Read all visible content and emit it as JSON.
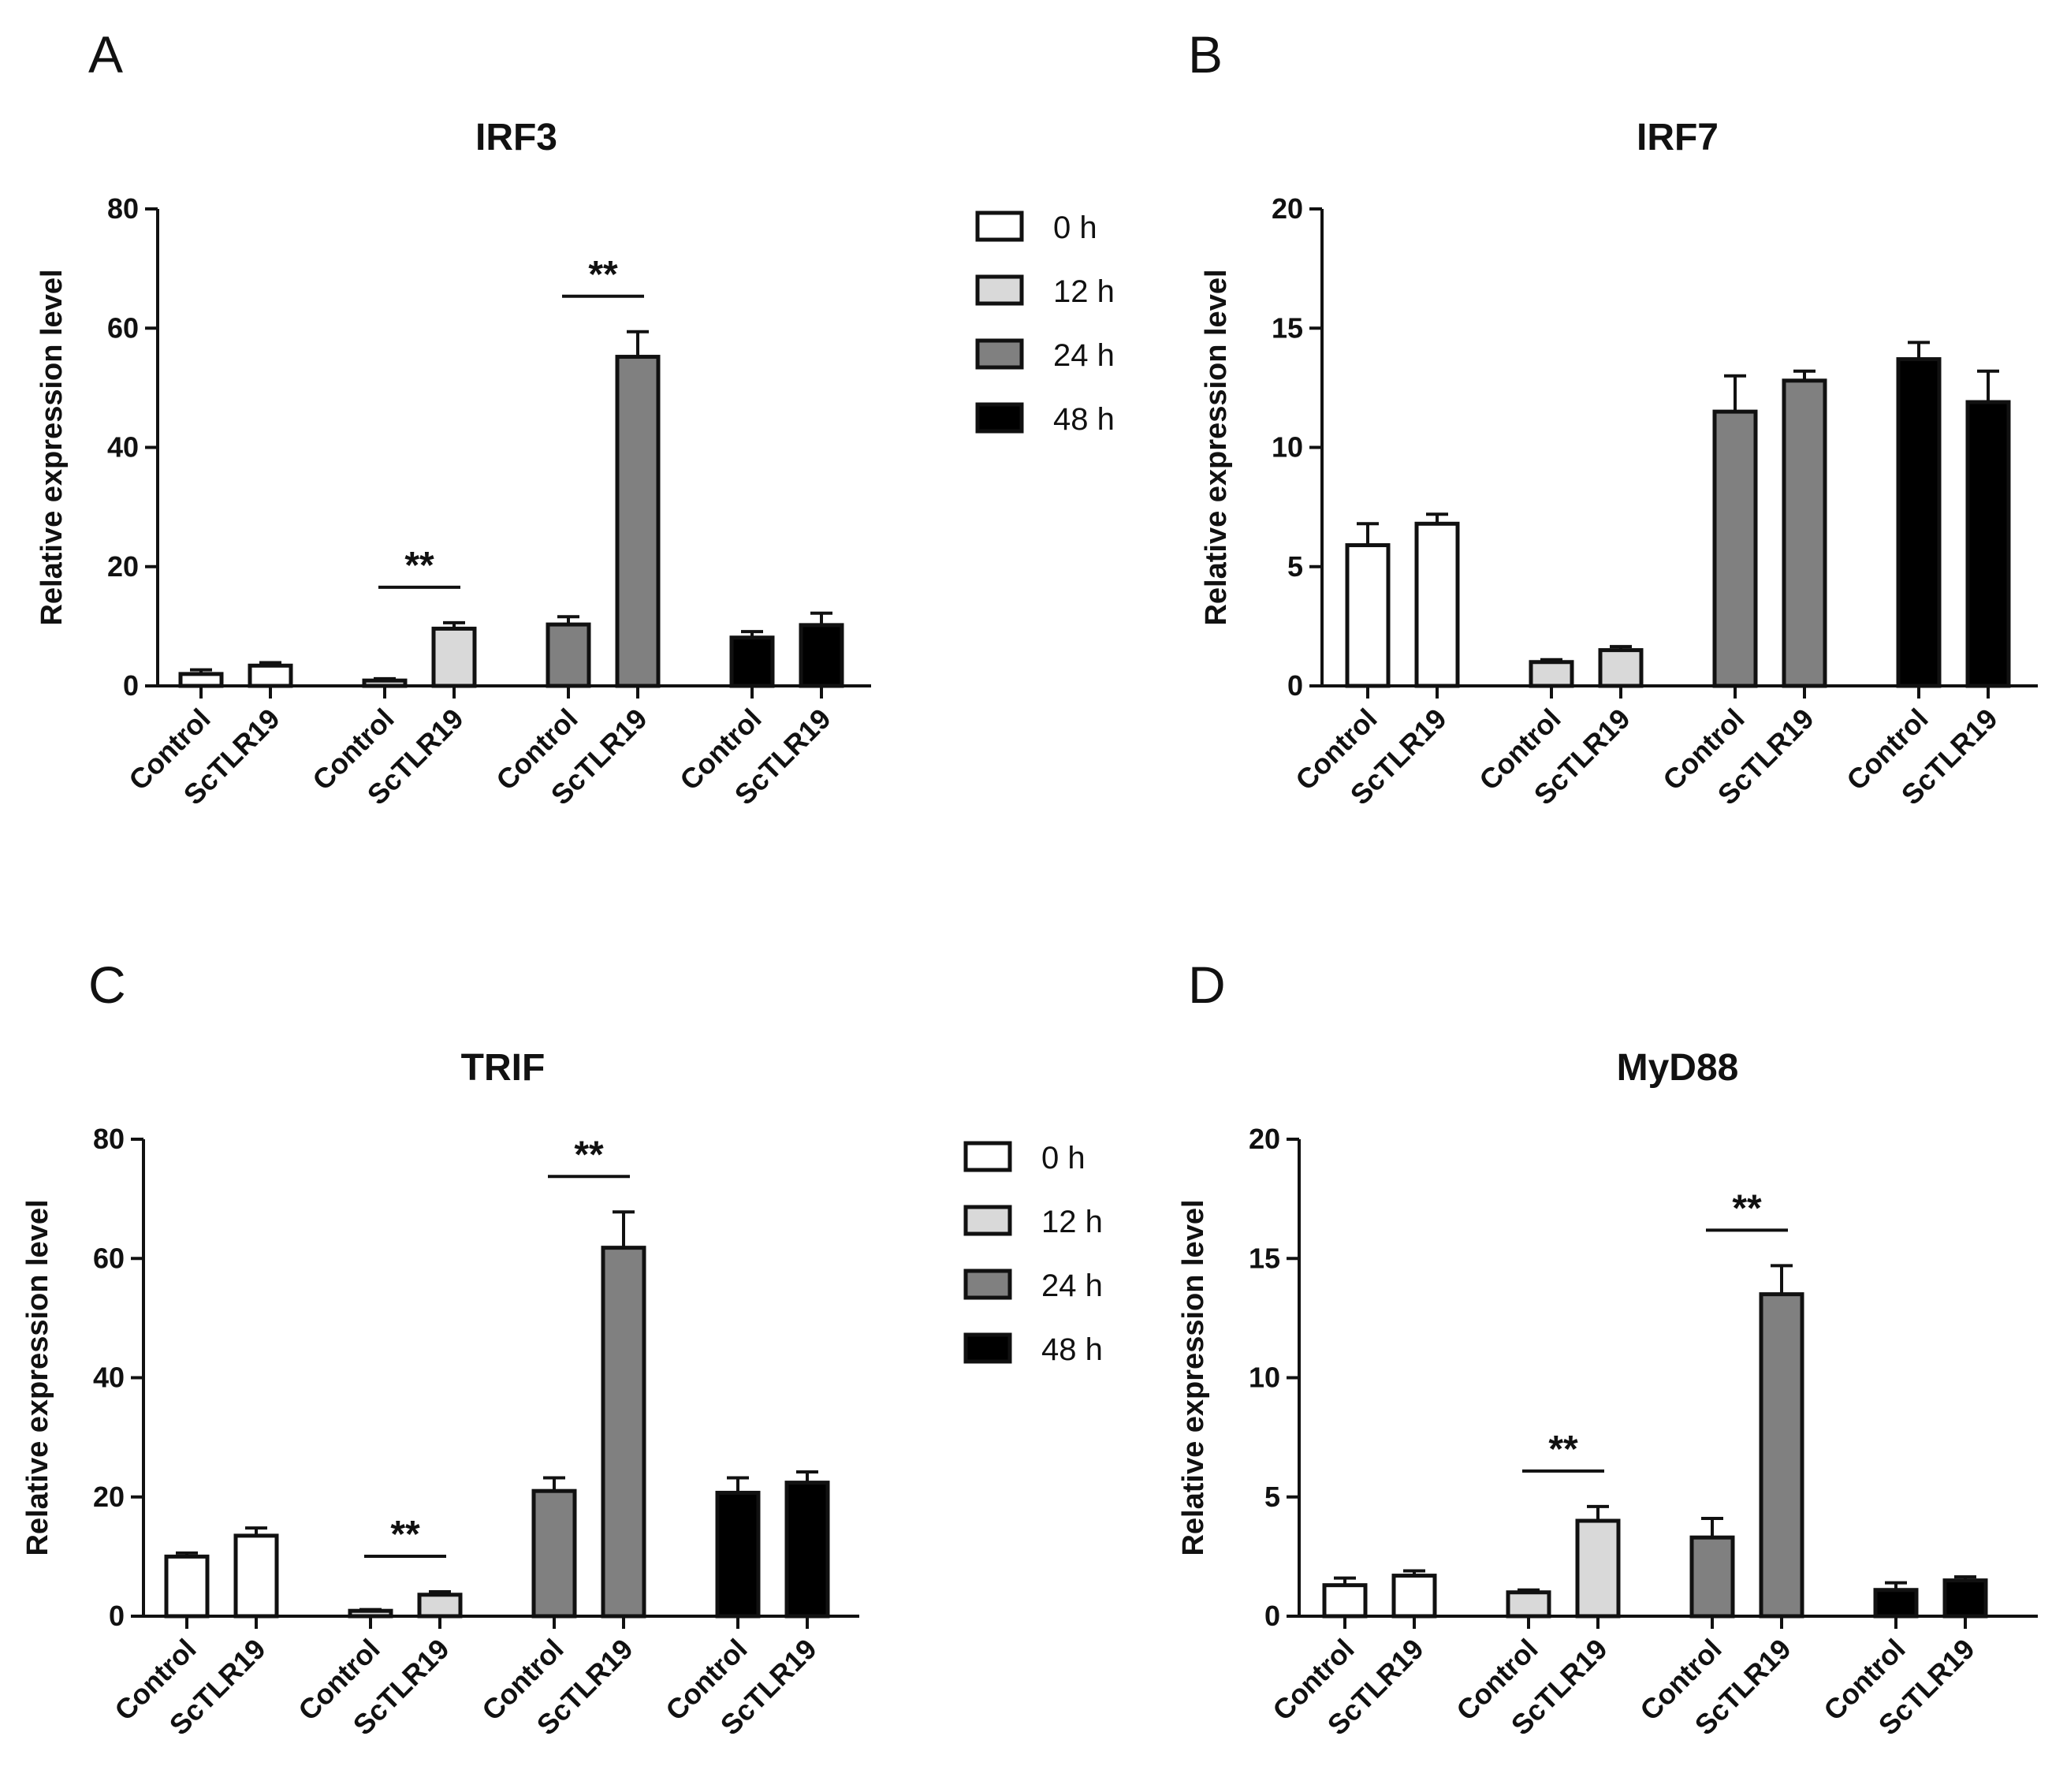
{
  "figure": {
    "charts": [
      "A",
      "B",
      "C",
      "D"
    ]
  },
  "legend": {
    "entries": [
      {
        "label": "0 h",
        "color": "#ffffff"
      },
      {
        "label": "12 h",
        "color": "#d9d9d9"
      },
      {
        "label": "24 h",
        "color": "#808080"
      },
      {
        "label": "48 h",
        "color": "#000000"
      }
    ]
  },
  "chart_data": [
    {
      "type": "bar",
      "panel": "A",
      "title": "IRF3",
      "ylabel": "Relative  expression level",
      "xlabel": "",
      "ylim": [
        0,
        80
      ],
      "yticks": [
        0,
        20,
        40,
        60,
        80
      ],
      "ytick_labels": [
        "0",
        "20",
        "40",
        "60",
        "80"
      ],
      "groups": [
        "0 h",
        "12 h",
        "24 h",
        "48 h"
      ],
      "categories": [
        "Control",
        "ScTLR19"
      ],
      "series": [
        {
          "name": "0 h",
          "values": [
            2.0,
            3.4
          ],
          "errors": [
            0.7,
            0.5
          ]
        },
        {
          "name": "12 h",
          "values": [
            0.9,
            9.6
          ],
          "errors": [
            0.3,
            1.0
          ]
        },
        {
          "name": "24 h",
          "values": [
            10.3,
            55.2
          ],
          "errors": [
            1.3,
            4.2
          ]
        },
        {
          "name": "48 h",
          "values": [
            8.1,
            10.2
          ],
          "errors": [
            1.0,
            2.0
          ]
        }
      ],
      "significance": [
        {
          "group": 1,
          "label": "**"
        },
        {
          "group": 2,
          "label": "**"
        }
      ]
    },
    {
      "type": "bar",
      "panel": "B",
      "title": "IRF7",
      "ylabel": "Relative  expression level",
      "xlabel": "",
      "ylim": [
        0,
        20
      ],
      "yticks": [
        0,
        5,
        10,
        15,
        20
      ],
      "ytick_labels": [
        "0",
        "5",
        "10",
        "15",
        "20"
      ],
      "groups": [
        "0 h",
        "12 h",
        "24 h",
        "48 h"
      ],
      "categories": [
        "Control",
        "ScTLR19"
      ],
      "series": [
        {
          "name": "0 h",
          "values": [
            5.9,
            6.8
          ],
          "errors": [
            0.9,
            0.4
          ]
        },
        {
          "name": "12 h",
          "values": [
            1.0,
            1.5
          ],
          "errors": [
            0.1,
            0.15
          ]
        },
        {
          "name": "24 h",
          "values": [
            11.5,
            12.8
          ],
          "errors": [
            1.5,
            0.4
          ]
        },
        {
          "name": "48 h",
          "values": [
            13.7,
            11.9
          ],
          "errors": [
            0.7,
            1.3
          ]
        }
      ],
      "significance": []
    },
    {
      "type": "bar",
      "panel": "C",
      "title": "TRIF",
      "ylabel": "Relative  expression level",
      "xlabel": "",
      "ylim": [
        0,
        80
      ],
      "yticks": [
        0,
        20,
        40,
        60,
        80
      ],
      "ytick_labels": [
        "0",
        "20",
        "40",
        "60",
        "80"
      ],
      "groups": [
        "0 h",
        "12 h",
        "24 h",
        "48 h"
      ],
      "categories": [
        "Control",
        "ScTLR19"
      ],
      "series": [
        {
          "name": "0 h",
          "values": [
            10.0,
            13.5
          ],
          "errors": [
            0.6,
            1.3
          ]
        },
        {
          "name": "12 h",
          "values": [
            0.9,
            3.6
          ],
          "errors": [
            0.2,
            0.5
          ]
        },
        {
          "name": "24 h",
          "values": [
            21.0,
            61.8
          ],
          "errors": [
            2.2,
            6.0
          ]
        },
        {
          "name": "48 h",
          "values": [
            20.7,
            22.4
          ],
          "errors": [
            2.5,
            1.8
          ]
        }
      ],
      "significance": [
        {
          "group": 1,
          "label": "**"
        },
        {
          "group": 2,
          "label": "**"
        }
      ]
    },
    {
      "type": "bar",
      "panel": "D",
      "title": "MyD88",
      "ylabel": "Relative  expression level",
      "xlabel": "",
      "ylim": [
        0,
        20
      ],
      "yticks": [
        0,
        5,
        10,
        15,
        20
      ],
      "ytick_labels": [
        "0",
        "5",
        "10",
        "15",
        "20"
      ],
      "groups": [
        "0 h",
        "12 h",
        "24 h",
        "48 h"
      ],
      "categories": [
        "Control",
        "ScTLR19"
      ],
      "series": [
        {
          "name": "0 h",
          "values": [
            1.3,
            1.7
          ],
          "errors": [
            0.3,
            0.2
          ]
        },
        {
          "name": "12 h",
          "values": [
            1.0,
            4.0
          ],
          "errors": [
            0.1,
            0.6
          ]
        },
        {
          "name": "24 h",
          "values": [
            3.3,
            13.5
          ],
          "errors": [
            0.8,
            1.2
          ]
        },
        {
          "name": "48 h",
          "values": [
            1.1,
            1.5
          ],
          "errors": [
            0.3,
            0.15
          ]
        }
      ],
      "significance": [
        {
          "group": 1,
          "label": "**"
        },
        {
          "group": 2,
          "label": "**"
        }
      ]
    }
  ]
}
